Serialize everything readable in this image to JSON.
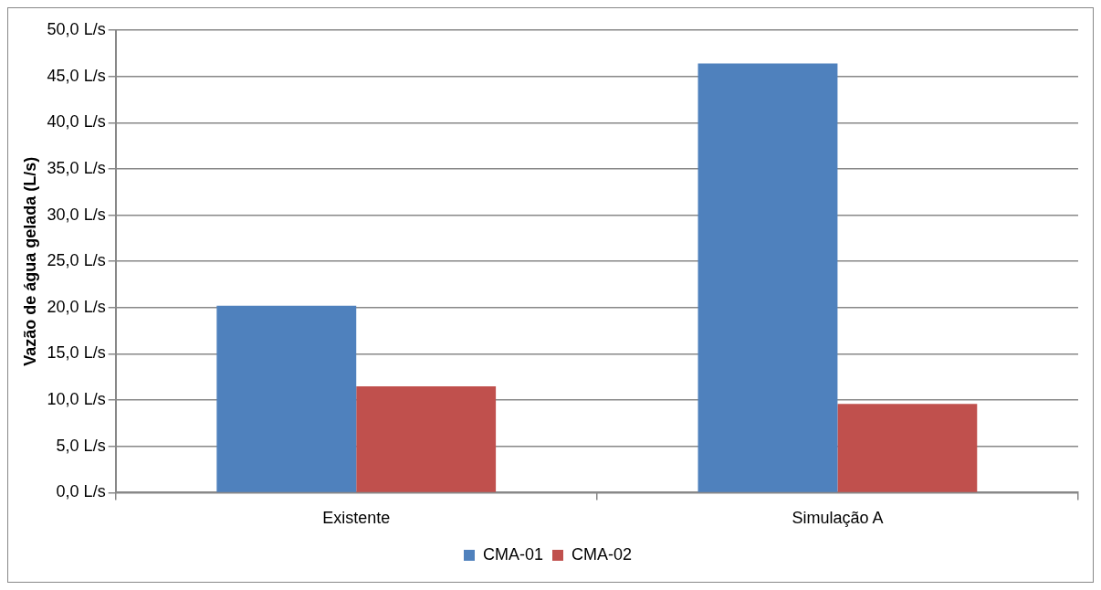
{
  "chart_data": {
    "type": "bar",
    "ylabel": "Vazão de água gelada (L/s)",
    "categories": [
      "Existente",
      "Simulação A"
    ],
    "series": [
      {
        "name": "CMA-01",
        "color": "#4f81bd",
        "values": [
          20.2,
          46.4
        ]
      },
      {
        "name": "CMA-02",
        "color": "#c0504d",
        "values": [
          11.5,
          9.6
        ]
      }
    ],
    "ylim": [
      0,
      50
    ],
    "yticks": [
      {
        "value": 0,
        "label": "0,0 L/s"
      },
      {
        "value": 5,
        "label": "5,0 L/s"
      },
      {
        "value": 10,
        "label": "10,0 L/s"
      },
      {
        "value": 15,
        "label": "15,0 L/s"
      },
      {
        "value": 20,
        "label": "20,0 L/s"
      },
      {
        "value": 25,
        "label": "25,0 L/s"
      },
      {
        "value": 30,
        "label": "30,0 L/s"
      },
      {
        "value": 35,
        "label": "35,0 L/s"
      },
      {
        "value": 40,
        "label": "40,0 L/s"
      },
      {
        "value": 45,
        "label": "45,0 L/s"
      },
      {
        "value": 50,
        "label": "50,0 L/s"
      }
    ],
    "grid": "y",
    "legend": "bottom"
  }
}
